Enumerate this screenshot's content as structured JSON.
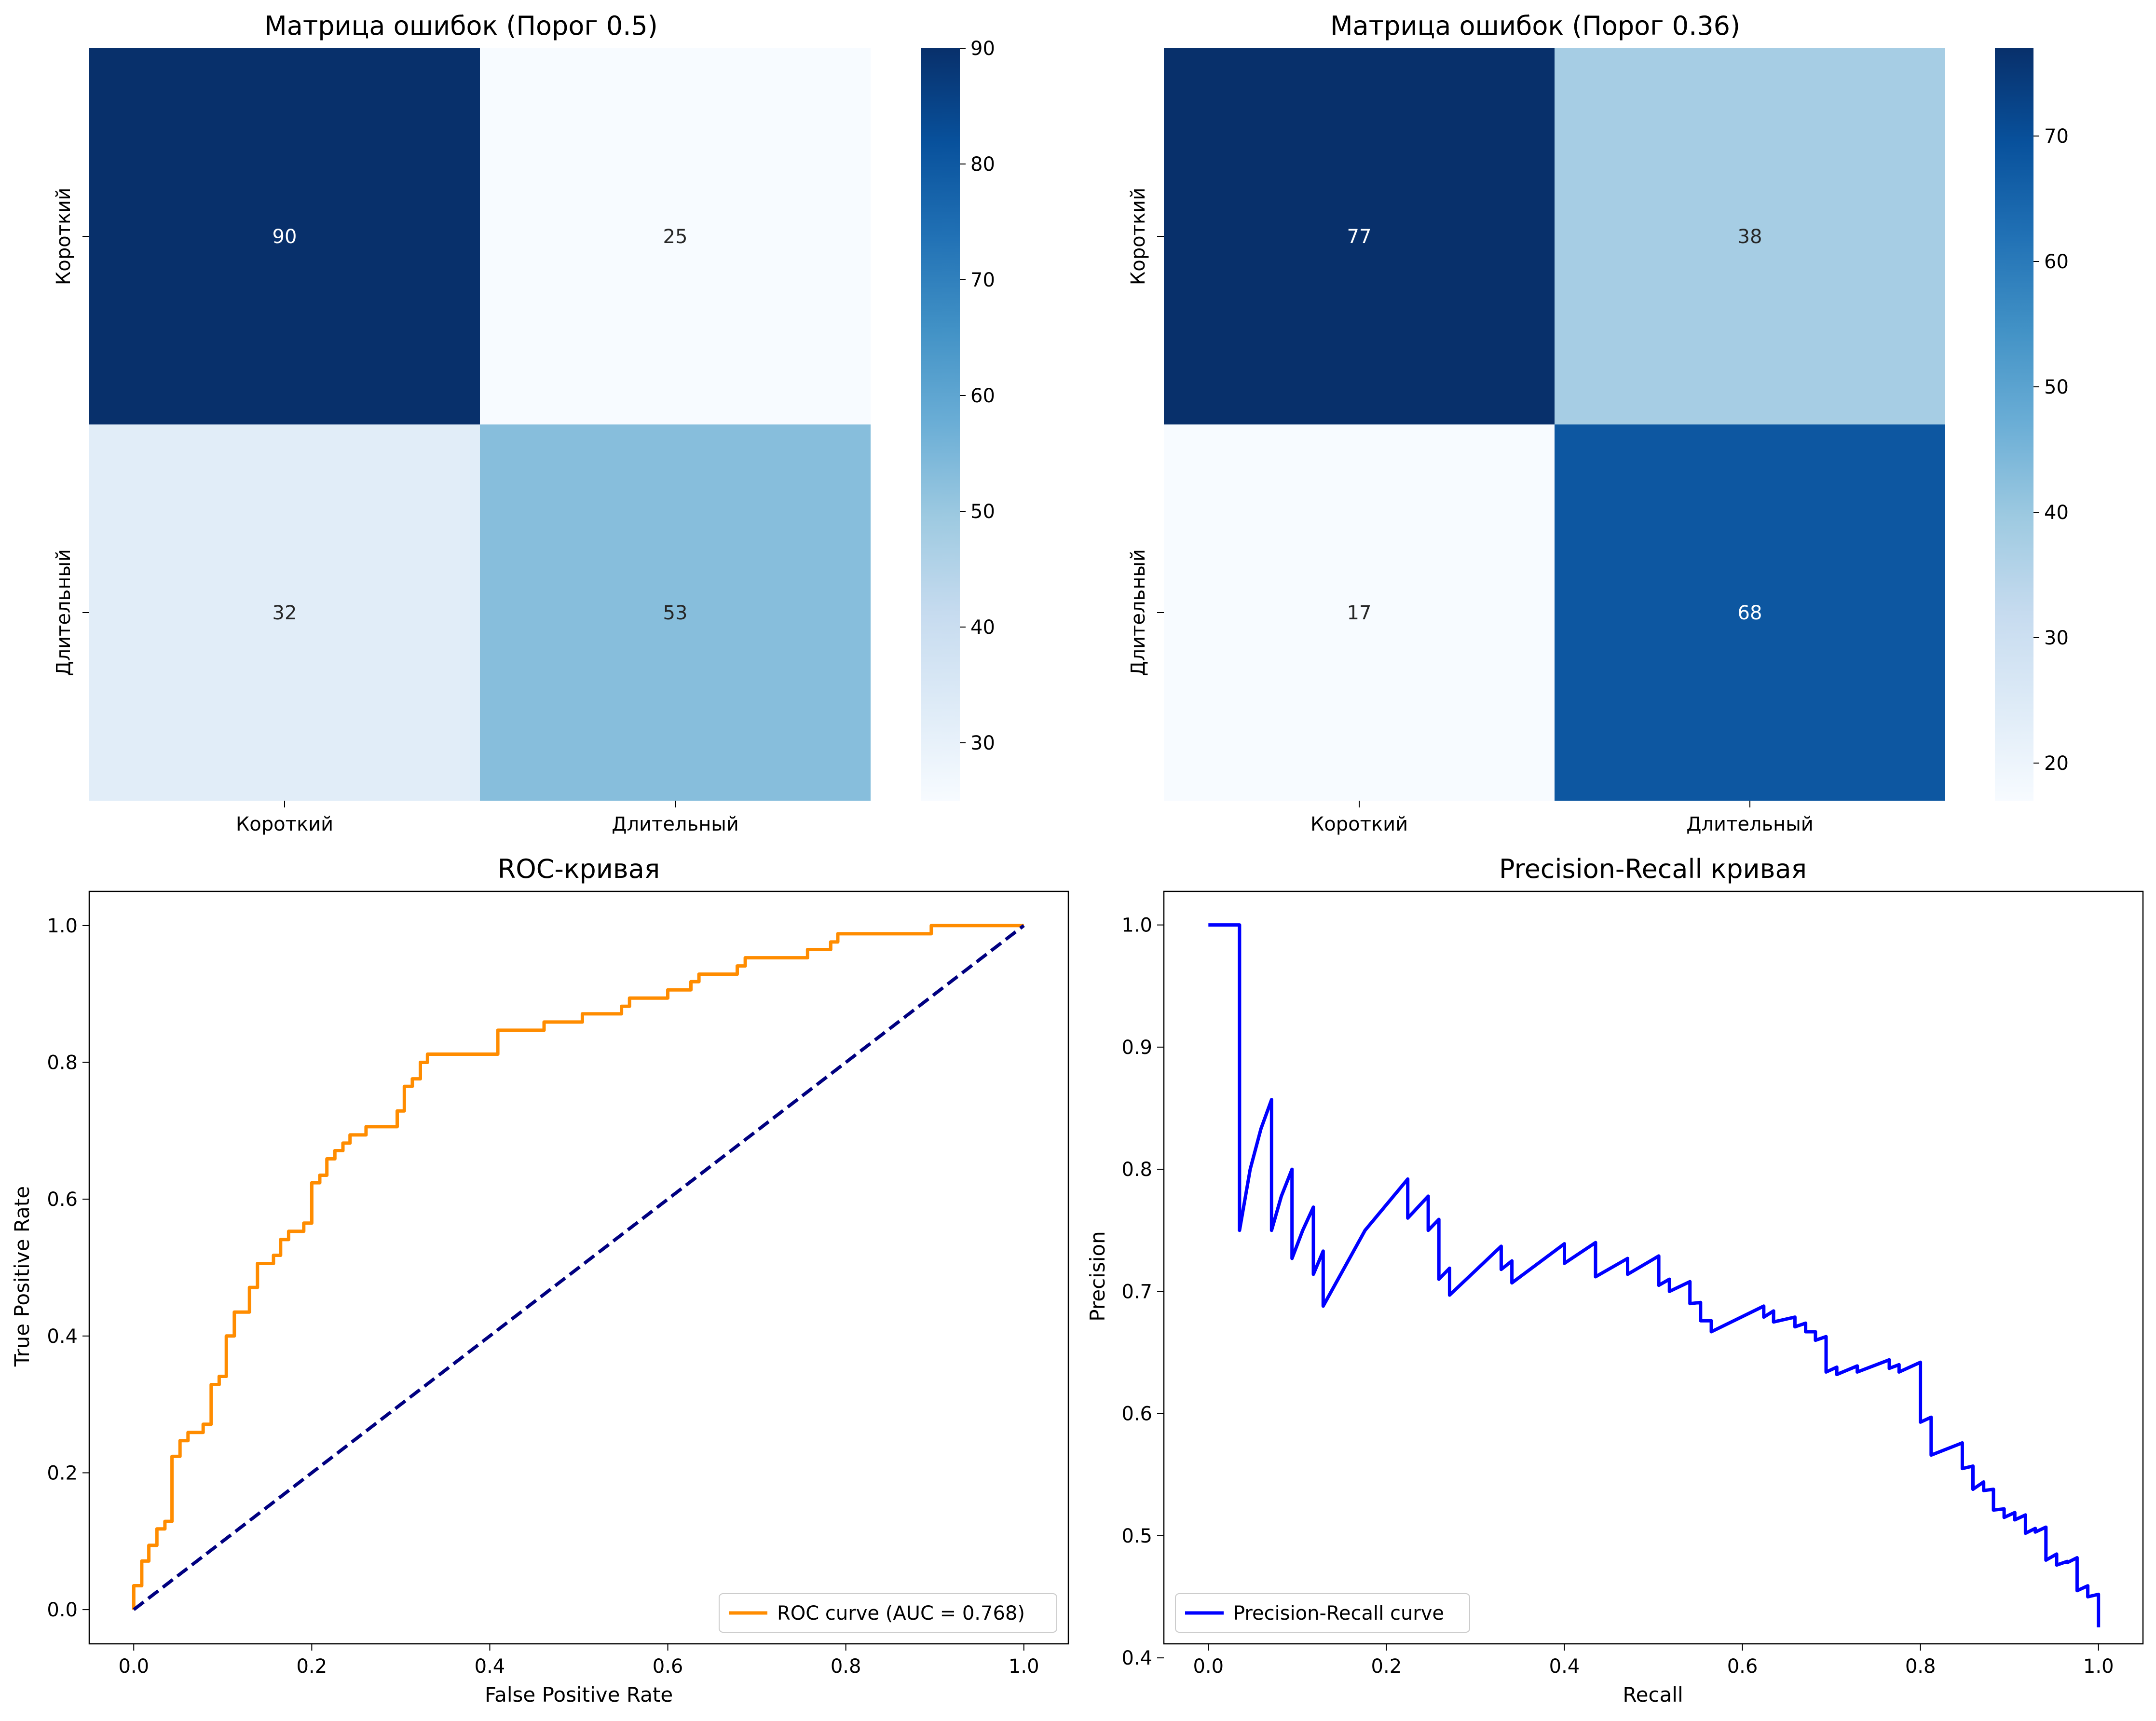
{
  "chart_data": [
    {
      "type": "heatmap",
      "title": "Матрица ошибок (Порог 0.5)",
      "row_labels": [
        "Короткий",
        "Длительный"
      ],
      "col_labels": [
        "Короткий",
        "Длительный"
      ],
      "values": [
        [
          90,
          25
        ],
        [
          32,
          53
        ]
      ],
      "vmin": 25,
      "vmax": 90,
      "colorbar_ticks": [
        30,
        40,
        50,
        60,
        70,
        80,
        90
      ],
      "colormap": "Blues"
    },
    {
      "type": "heatmap",
      "title": "Матрица ошибок (Порог 0.36)",
      "row_labels": [
        "Короткий",
        "Длительный"
      ],
      "col_labels": [
        "Короткий",
        "Длительный"
      ],
      "values": [
        [
          77,
          38
        ],
        [
          17,
          68
        ]
      ],
      "vmin": 17,
      "vmax": 77,
      "colorbar_ticks": [
        20,
        30,
        40,
        50,
        60,
        70
      ],
      "colormap": "Blues"
    },
    {
      "type": "line",
      "title": "ROC-кривая",
      "xlabel": "False Positive Rate",
      "ylabel": "True Positive Rate",
      "xlim": [
        -0.05,
        1.05
      ],
      "ylim": [
        -0.05,
        1.05
      ],
      "xticks": [
        0.0,
        0.2,
        0.4,
        0.6,
        0.8,
        1.0
      ],
      "yticks": [
        0.0,
        0.2,
        0.4,
        0.6,
        0.8,
        1.0
      ],
      "tick_labels": [
        "0.0",
        "0.2",
        "0.4",
        "0.6",
        "0.8",
        "1.0"
      ],
      "legend_position": "lower-right",
      "series": [
        {
          "name": "ROC curve (AUC = 0.768)",
          "color": "#ff8c00",
          "style": "solid",
          "x": [
            0,
            0,
            0.009,
            0.009,
            0.017,
            0.017,
            0.026,
            0.026,
            0.035,
            0.035,
            0.043,
            0.043,
            0.043,
            0.052,
            0.052,
            0.061,
            0.061,
            0.078,
            0.078,
            0.087,
            0.087,
            0.096,
            0.096,
            0.104,
            0.104,
            0.113,
            0.113,
            0.13,
            0.13,
            0.139,
            0.139,
            0.157,
            0.157,
            0.165,
            0.165,
            0.174,
            0.174,
            0.191,
            0.191,
            0.2,
            0.2,
            0.209,
            0.209,
            0.217,
            0.217,
            0.226,
            0.226,
            0.235,
            0.235,
            0.243,
            0.243,
            0.261,
            0.261,
            0.296,
            0.296,
            0.304,
            0.304,
            0.313,
            0.313,
            0.322,
            0.322,
            0.33,
            0.33,
            0.409,
            0.409,
            0.461,
            0.461,
            0.504,
            0.504,
            0.548,
            0.548,
            0.557,
            0.557,
            0.6,
            0.6,
            0.626,
            0.626,
            0.635,
            0.635,
            0.678,
            0.678,
            0.687,
            0.687,
            0.757,
            0.757,
            0.783,
            0.783,
            0.791,
            0.791,
            0.896,
            0.896,
            1.0
          ],
          "y": [
            0,
            0.035,
            0.035,
            0.071,
            0.071,
            0.094,
            0.094,
            0.118,
            0.118,
            0.129,
            0.129,
            0.2,
            0.224,
            0.224,
            0.247,
            0.247,
            0.259,
            0.259,
            0.271,
            0.271,
            0.329,
            0.329,
            0.341,
            0.341,
            0.4,
            0.4,
            0.435,
            0.435,
            0.471,
            0.471,
            0.506,
            0.506,
            0.518,
            0.518,
            0.541,
            0.541,
            0.553,
            0.553,
            0.565,
            0.565,
            0.624,
            0.624,
            0.635,
            0.635,
            0.659,
            0.659,
            0.671,
            0.671,
            0.682,
            0.682,
            0.694,
            0.694,
            0.706,
            0.706,
            0.729,
            0.729,
            0.765,
            0.765,
            0.776,
            0.776,
            0.8,
            0.8,
            0.812,
            0.812,
            0.847,
            0.847,
            0.859,
            0.859,
            0.871,
            0.871,
            0.882,
            0.882,
            0.894,
            0.894,
            0.906,
            0.906,
            0.918,
            0.918,
            0.929,
            0.929,
            0.941,
            0.941,
            0.953,
            0.953,
            0.965,
            0.965,
            0.976,
            0.976,
            0.988,
            0.988,
            1.0,
            1.0
          ]
        },
        {
          "name": "",
          "color": "#000080",
          "style": "dashed",
          "x": [
            0,
            1
          ],
          "y": [
            0,
            1
          ]
        }
      ]
    },
    {
      "type": "line",
      "title": "Precision-Recall кривая",
      "xlabel": "Recall",
      "ylabel": "Precision",
      "xlim": [
        -0.05,
        1.05
      ],
      "ylim": [
        0.4115,
        1.0275
      ],
      "xticks": [
        0.0,
        0.2,
        0.4,
        0.6,
        0.8,
        1.0
      ],
      "yticks": [
        0.4,
        0.5,
        0.6,
        0.7,
        0.8,
        0.9,
        1.0
      ],
      "xtick_labels": [
        "0.0",
        "0.2",
        "0.4",
        "0.6",
        "0.8",
        "1.0"
      ],
      "ytick_labels": [
        "0.4",
        "0.5",
        "0.6",
        "0.7",
        "0.8",
        "0.9",
        "1.0"
      ],
      "legend_position": "lower-left",
      "series": [
        {
          "name": "Precision-Recall curve",
          "color": "#0000ff",
          "style": "solid",
          "x": [
            0,
            0.035,
            0.035,
            0.047,
            0.059,
            0.071,
            0.071,
            0.082,
            0.094,
            0.094,
            0.106,
            0.118,
            0.118,
            0.129,
            0.129,
            0.176,
            0.224,
            0.224,
            0.247,
            0.247,
            0.259,
            0.259,
            0.271,
            0.271,
            0.329,
            0.329,
            0.341,
            0.341,
            0.4,
            0.4,
            0.435,
            0.435,
            0.471,
            0.471,
            0.506,
            0.506,
            0.518,
            0.518,
            0.541,
            0.541,
            0.553,
            0.553,
            0.565,
            0.565,
            0.624,
            0.624,
            0.635,
            0.635,
            0.659,
            0.659,
            0.671,
            0.671,
            0.682,
            0.682,
            0.694,
            0.694,
            0.706,
            0.706,
            0.729,
            0.729,
            0.765,
            0.765,
            0.776,
            0.776,
            0.8,
            0.8,
            0.812,
            0.812,
            0.847,
            0.847,
            0.859,
            0.859,
            0.871,
            0.871,
            0.882,
            0.882,
            0.894,
            0.894,
            0.906,
            0.906,
            0.918,
            0.918,
            0.929,
            0.929,
            0.941,
            0.941,
            0.953,
            0.953,
            0.965,
            0.965,
            0.976,
            0.976,
            0.988,
            0.988,
            1.0,
            1.0
          ],
          "y": [
            1.0,
            1.0,
            0.75,
            0.8,
            0.833,
            0.857,
            0.75,
            0.778,
            0.8,
            0.727,
            0.75,
            0.769,
            0.714,
            0.733,
            0.688,
            0.75,
            0.792,
            0.76,
            0.778,
            0.75,
            0.759,
            0.71,
            0.719,
            0.697,
            0.737,
            0.718,
            0.725,
            0.707,
            0.739,
            0.723,
            0.74,
            0.712,
            0.727,
            0.714,
            0.729,
            0.705,
            0.71,
            0.7,
            0.708,
            0.69,
            0.691,
            0.676,
            0.676,
            0.667,
            0.688,
            0.679,
            0.684,
            0.675,
            0.679,
            0.671,
            0.674,
            0.667,
            0.667,
            0.66,
            0.663,
            0.634,
            0.638,
            0.632,
            0.639,
            0.634,
            0.644,
            0.637,
            0.64,
            0.634,
            0.642,
            0.593,
            0.597,
            0.566,
            0.576,
            0.555,
            0.557,
            0.538,
            0.544,
            0.537,
            0.538,
            0.521,
            0.522,
            0.515,
            0.519,
            0.513,
            0.517,
            0.502,
            0.506,
            0.503,
            0.507,
            0.48,
            0.485,
            0.476,
            0.479,
            0.478,
            0.482,
            0.455,
            0.459,
            0.45,
            0.452,
            0.425
          ]
        }
      ]
    }
  ]
}
